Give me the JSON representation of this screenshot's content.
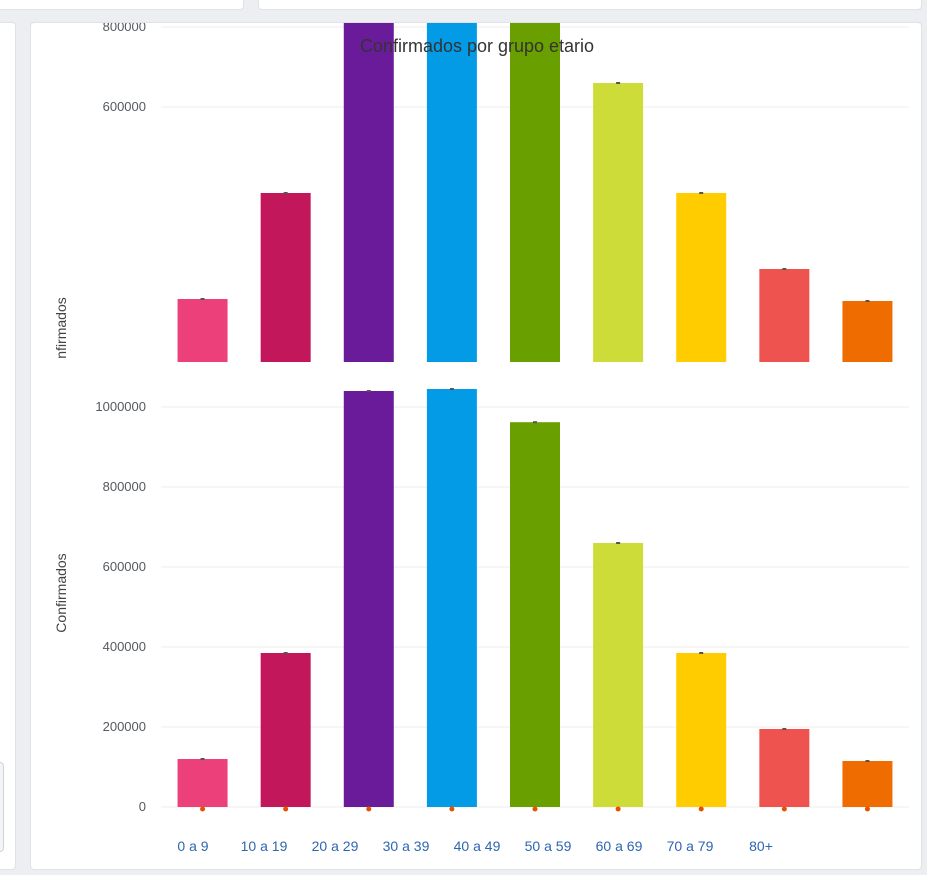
{
  "chart_data": {
    "type": "bar",
    "title": "Confirmados por grupo etario",
    "ylabel": "Confirmados",
    "ylabel_upper_fragment": "nfirmados",
    "ylim": [
      0,
      1200000
    ],
    "categories": [
      "0 a 9",
      "10 a 19",
      "20 a 29",
      "30 a 39",
      "40 a 49",
      "50 a 59",
      "60 a 69",
      "70 a 79",
      "80+"
    ],
    "values": [
      120000,
      385000,
      1040000,
      1145000,
      962000,
      660000,
      385000,
      195000,
      115000
    ],
    "colors": [
      "#ec407a",
      "#c2185b",
      "#6a1b9a",
      "#039be5",
      "#6a9f00",
      "#cddc39",
      "#ffcc00",
      "#ef5350",
      "#ef6c00"
    ],
    "lower_pane": {
      "ylim": [
        0,
        1000000
      ],
      "yticks": [
        0,
        200000,
        400000,
        600000,
        800000,
        1000000
      ]
    },
    "upper_pane": {
      "yticks": [
        600000,
        800000,
        1000000,
        1200000
      ]
    },
    "grid": true,
    "legend": "none"
  }
}
